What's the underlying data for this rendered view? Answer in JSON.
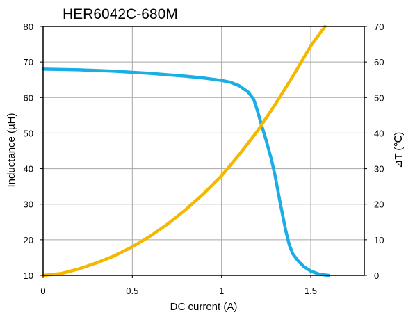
{
  "chart_data": {
    "type": "line",
    "title": "HER6042C-680M",
    "xlabel": "DC current (A)",
    "ylabel": "Inductance (µH)",
    "y2label": "⊿T (℃)",
    "xlim": [
      0,
      1.8
    ],
    "ylim": [
      10,
      80
    ],
    "y2lim": [
      0,
      70
    ],
    "x_ticks": [
      "0",
      "0.5",
      "1",
      "1.5"
    ],
    "x_tick_values": [
      0,
      0.5,
      1,
      1.5
    ],
    "y_ticks": [
      "10",
      "20",
      "30",
      "40",
      "50",
      "60",
      "70",
      "80"
    ],
    "y_tick_values": [
      10,
      20,
      30,
      40,
      50,
      60,
      70,
      80
    ],
    "y2_ticks": [
      "0",
      "10",
      "20",
      "30",
      "40",
      "50",
      "60",
      "70"
    ],
    "y2_tick_values": [
      0,
      10,
      20,
      30,
      40,
      50,
      60,
      70
    ],
    "grid": true,
    "series": [
      {
        "axis": "left",
        "color": "#1aaee5",
        "points": [
          [
            0,
            68.0
          ],
          [
            0.1,
            67.9
          ],
          [
            0.2,
            67.8
          ],
          [
            0.3,
            67.6
          ],
          [
            0.4,
            67.4
          ],
          [
            0.5,
            67.1
          ],
          [
            0.6,
            66.8
          ],
          [
            0.7,
            66.4
          ],
          [
            0.8,
            66.0
          ],
          [
            0.9,
            65.5
          ],
          [
            1.0,
            64.8
          ],
          [
            1.05,
            64.3
          ],
          [
            1.1,
            63.3
          ],
          [
            1.15,
            61.5
          ],
          [
            1.18,
            59.5
          ],
          [
            1.2,
            56.5
          ],
          [
            1.22,
            53.0
          ],
          [
            1.25,
            48.0
          ],
          [
            1.28,
            42.5
          ],
          [
            1.3,
            38.0
          ],
          [
            1.33,
            30.0
          ],
          [
            1.36,
            22.5
          ],
          [
            1.38,
            18.5
          ],
          [
            1.4,
            16.0
          ],
          [
            1.43,
            14.0
          ],
          [
            1.46,
            12.5
          ],
          [
            1.5,
            11.2
          ],
          [
            1.55,
            10.3
          ],
          [
            1.6,
            10.0
          ]
        ]
      },
      {
        "axis": "right",
        "color": "#f5b800",
        "points": [
          [
            0,
            0
          ],
          [
            0.1,
            0.5
          ],
          [
            0.2,
            1.8
          ],
          [
            0.3,
            3.5
          ],
          [
            0.4,
            5.5
          ],
          [
            0.5,
            8.0
          ],
          [
            0.6,
            11.0
          ],
          [
            0.7,
            14.5
          ],
          [
            0.8,
            18.5
          ],
          [
            0.9,
            23.0
          ],
          [
            1.0,
            28.0
          ],
          [
            1.1,
            34.0
          ],
          [
            1.2,
            40.5
          ],
          [
            1.3,
            48.0
          ],
          [
            1.4,
            56.0
          ],
          [
            1.5,
            64.5
          ],
          [
            1.58,
            70.0
          ]
        ]
      }
    ]
  }
}
